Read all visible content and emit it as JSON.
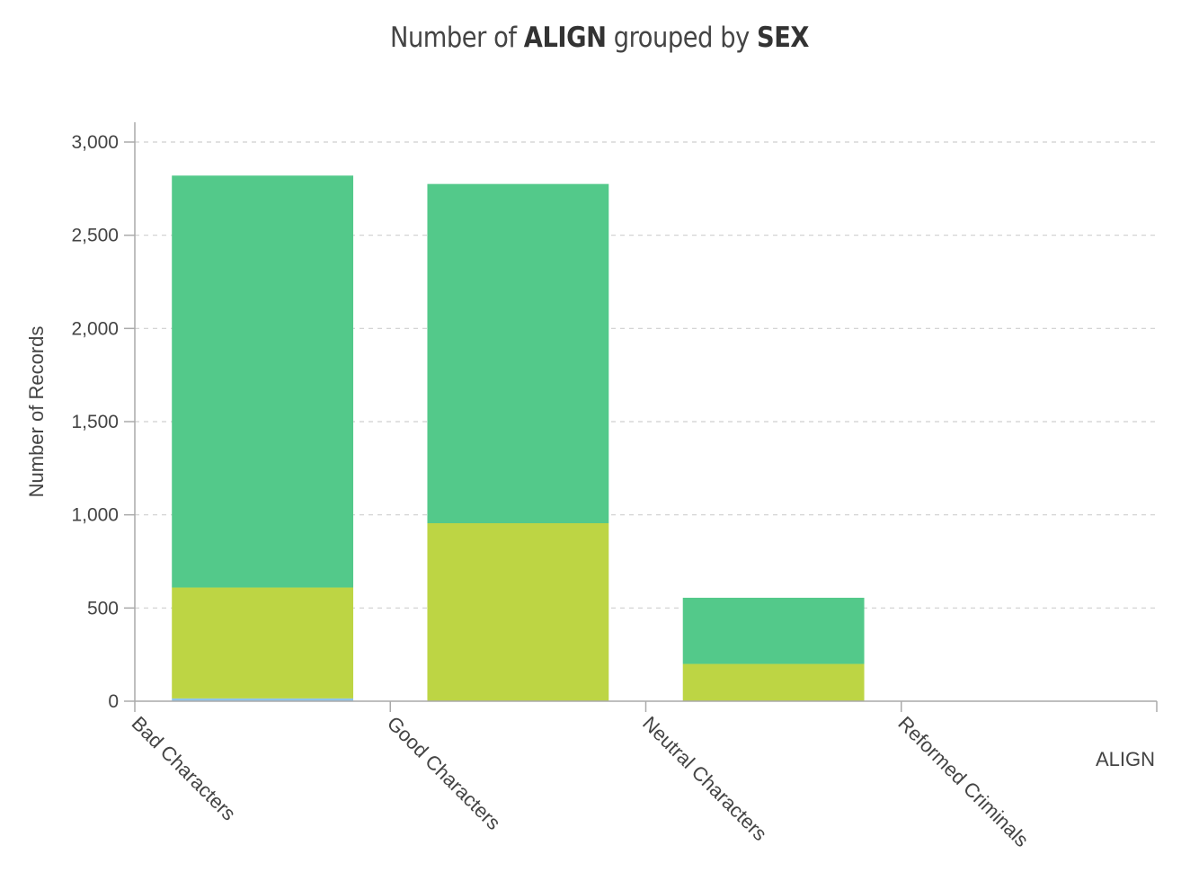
{
  "chart_data": {
    "type": "bar",
    "stacked": true,
    "title": {
      "prefix": "Number of ",
      "bold1": "ALIGN",
      "middle": " grouped by ",
      "bold2": "SEX"
    },
    "xlabel": "ALIGN",
    "ylabel": "Number of Records",
    "ylim": [
      0,
      3000
    ],
    "yticks": [
      0,
      500,
      1000,
      1500,
      2000,
      2500,
      3000
    ],
    "ytick_labels": [
      "0",
      "500",
      "1,000",
      "1,500",
      "2,000",
      "2,500",
      "3,000"
    ],
    "grid": "horizontal dashed",
    "categories": [
      "Bad Characters",
      "Good Characters",
      "Neutral Characters",
      "Reformed Criminals"
    ],
    "series": [
      {
        "color": "#8ec4e8",
        "values": [
          15,
          0,
          0,
          0
        ]
      },
      {
        "color": "#bdd544",
        "values": [
          595,
          955,
          200,
          0
        ]
      },
      {
        "color": "#53c98a",
        "values": [
          2210,
          1820,
          355,
          0
        ]
      }
    ]
  }
}
